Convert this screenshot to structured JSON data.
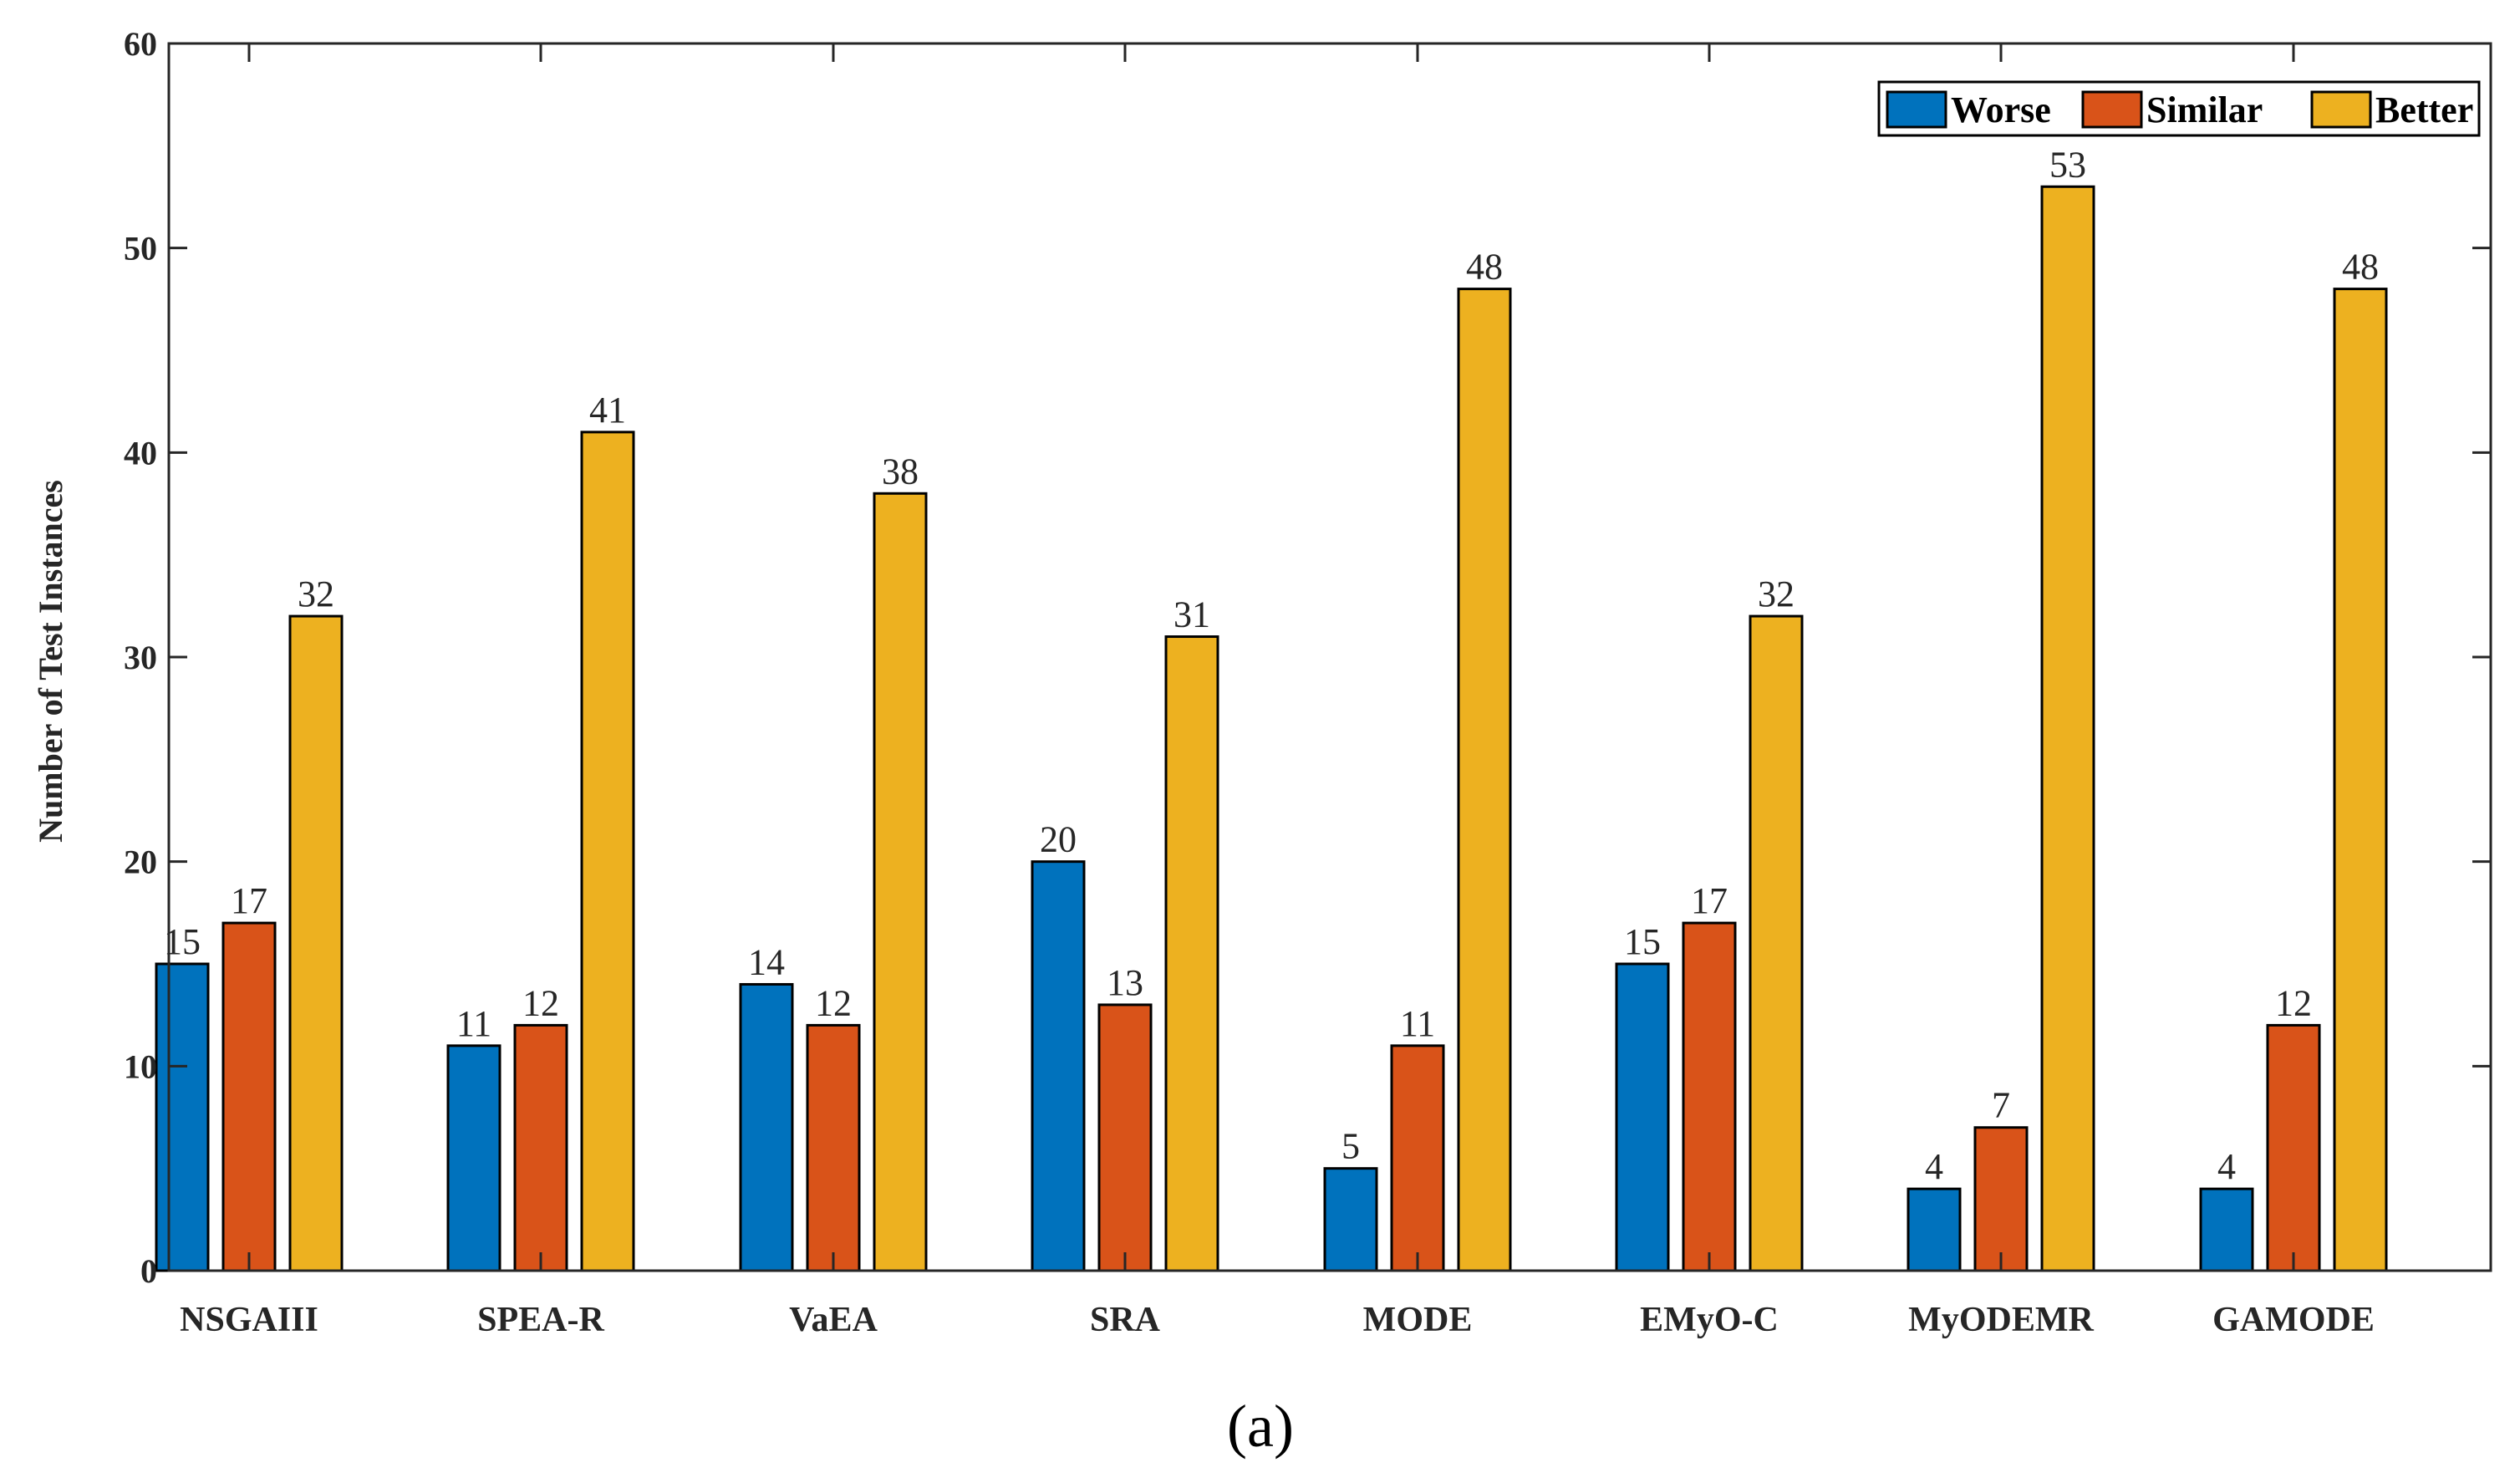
{
  "chart_data": {
    "type": "bar",
    "title": "",
    "xlabel": "",
    "ylabel": "Number of Test Instances",
    "ylim": [
      0,
      60
    ],
    "yticks": [
      0,
      10,
      20,
      30,
      40,
      50,
      60
    ],
    "categories": [
      "NSGAIII",
      "SPEA-R",
      "VaEA",
      "SRA",
      "MODE",
      "EMyO-C",
      "MyODEMR",
      "GAMODE"
    ],
    "series": [
      {
        "name": "Worse",
        "color": "#0072BD",
        "values": [
          15,
          11,
          14,
          20,
          5,
          15,
          4,
          4
        ]
      },
      {
        "name": "Similar",
        "color": "#D95319",
        "values": [
          17,
          12,
          12,
          13,
          11,
          17,
          7,
          12
        ]
      },
      {
        "name": "Better",
        "color": "#EDB120",
        "values": [
          32,
          41,
          38,
          31,
          48,
          32,
          53,
          48
        ]
      }
    ],
    "legend_position": "top-right",
    "grid": false
  },
  "caption": "(a)"
}
